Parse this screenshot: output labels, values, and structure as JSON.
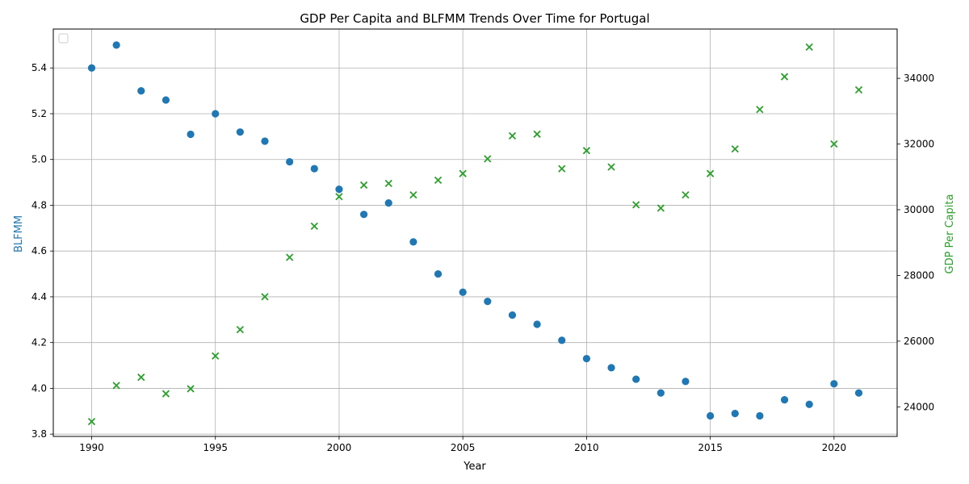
{
  "chart_data": {
    "type": "scatter",
    "title": "GDP Per Capita and BLFMM Trends Over Time for Portugal",
    "xlabel": "Year",
    "ylabel_left": "BLFMM",
    "ylabel_right": "GDP Per Capita",
    "xlim": [
      1988.45,
      2022.55
    ],
    "ylim_left": [
      3.79,
      5.57
    ],
    "ylim_right": [
      23100,
      35500
    ],
    "x_ticks": [
      1990,
      1995,
      2000,
      2005,
      2010,
      2015,
      2020
    ],
    "y_ticks_left": [
      3.8,
      4.0,
      4.2,
      4.4,
      4.6,
      4.8,
      5.0,
      5.2,
      5.4
    ],
    "y_ticks_right": [
      24000,
      26000,
      28000,
      30000,
      32000,
      34000
    ],
    "grid": true,
    "legend": "top-left, empty",
    "colors": {
      "blfmm": "#1f77b4",
      "gdp": "#2ca02c"
    },
    "x": [
      1990,
      1991,
      1992,
      1993,
      1994,
      1995,
      1996,
      1997,
      1998,
      1999,
      2000,
      2001,
      2002,
      2003,
      2004,
      2005,
      2006,
      2007,
      2008,
      2009,
      2010,
      2011,
      2012,
      2013,
      2014,
      2015,
      2016,
      2017,
      2018,
      2019,
      2020,
      2021
    ],
    "series": [
      {
        "axis": "left",
        "marker": "circle",
        "values": [
          5.4,
          5.5,
          5.3,
          5.26,
          5.11,
          5.2,
          5.12,
          5.08,
          4.99,
          4.96,
          4.87,
          4.76,
          4.81,
          4.64,
          4.5,
          4.42,
          4.38,
          4.32,
          4.28,
          4.21,
          4.13,
          4.09,
          4.04,
          3.98,
          4.03,
          3.88,
          3.89,
          3.88,
          3.95,
          3.93,
          4.02,
          3.98
        ]
      },
      {
        "axis": "right",
        "marker": "x",
        "values": [
          23550,
          24650,
          24900,
          24400,
          24550,
          25550,
          26350,
          27350,
          28550,
          29500,
          30400,
          30750,
          30800,
          30450,
          30900,
          31100,
          31550,
          32250,
          32300,
          31250,
          31800,
          31300,
          30150,
          30050,
          30450,
          31100,
          31850,
          33050,
          34050,
          34950,
          32000,
          33650
        ]
      }
    ]
  }
}
